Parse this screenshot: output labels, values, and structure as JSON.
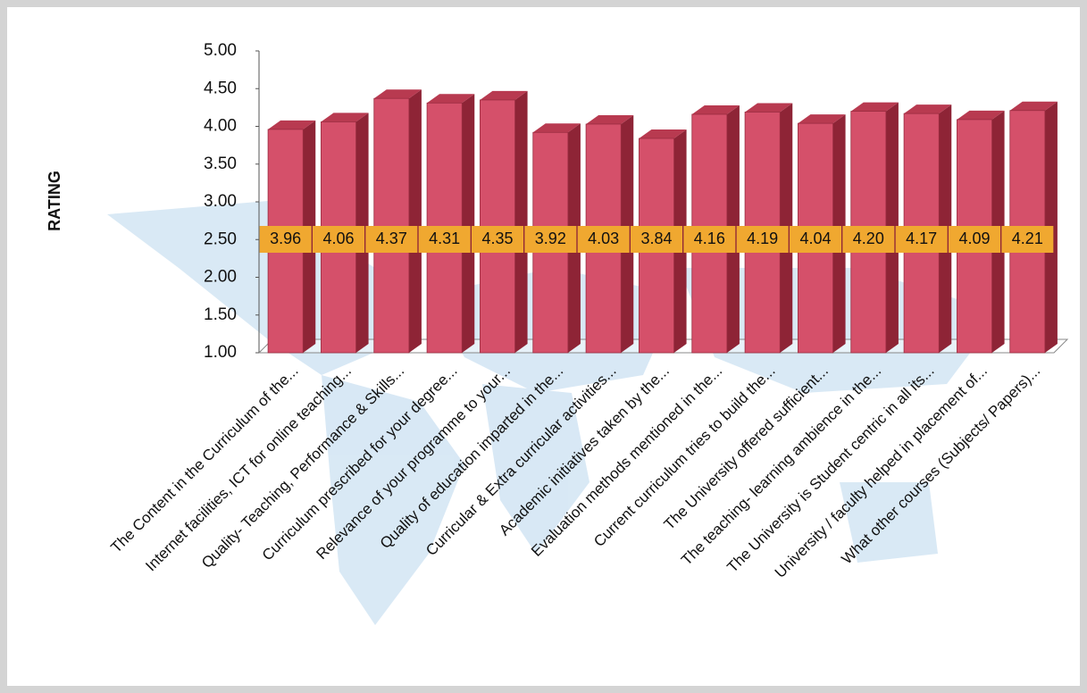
{
  "chart_data": {
    "type": "bar3d",
    "y_label": "RATING",
    "categories": [
      "The Content in the Curriculum of the...",
      "Internet facilities, ICT for online teaching...",
      "Quality- Teaching, Performance & Skills...",
      "Curriculum prescribed for your degree...",
      "Relevance of your programme to your...",
      "Quality of education imparted in the...",
      "Curricular & Extra curricular activities...",
      "Academic initiatives taken by the...",
      "Evaluation methods mentioned in the...",
      "Current curriculum tries to build the...",
      "The University offered sufficient...",
      "The teaching- learning ambience in the...",
      "The University is Student centric in all its...",
      "University / faculty helped in placement of...",
      "What other courses (Subjects/ Papers)..."
    ],
    "values": [
      3.96,
      4.06,
      4.37,
      4.31,
      4.35,
      3.92,
      4.03,
      3.84,
      4.16,
      4.19,
      4.04,
      4.2,
      4.17,
      4.09,
      4.21
    ],
    "value_labels": [
      "3.96",
      "4.06",
      "4.37",
      "4.31",
      "4.35",
      "3.92",
      "4.03",
      "3.84",
      "4.16",
      "4.19",
      "4.04",
      "4.20",
      "4.17",
      "4.09",
      "4.21"
    ],
    "color": "#d5506a",
    "ylim": [
      1,
      5
    ],
    "yticks": [
      {
        "value": 1,
        "label": "1.00"
      },
      {
        "value": 1.5,
        "label": "1.50"
      },
      {
        "value": 2,
        "label": "2.00"
      },
      {
        "value": 2.5,
        "label": "2.50"
      },
      {
        "value": 3,
        "label": "3.00"
      },
      {
        "value": 3.5,
        "label": "3.50"
      },
      {
        "value": 4,
        "label": "4.00"
      },
      {
        "value": 4.5,
        "label": "4.50"
      },
      {
        "value": 5,
        "label": "5.00"
      }
    ]
  }
}
